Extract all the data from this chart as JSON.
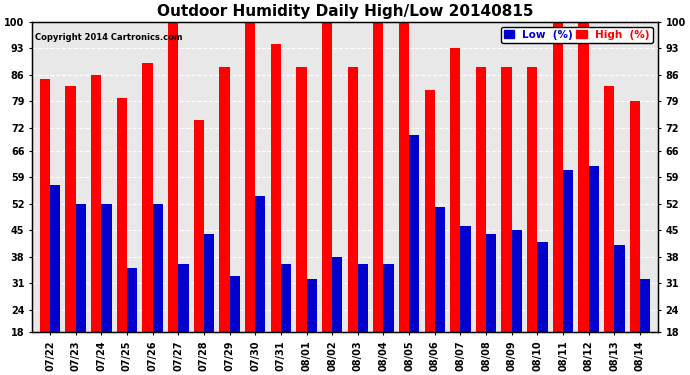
{
  "title": "Outdoor Humidity Daily High/Low 20140815",
  "copyright": "Copyright 2014 Cartronics.com",
  "legend_low": "Low  (%)",
  "legend_high": "High  (%)",
  "categories": [
    "07/22",
    "07/23",
    "07/24",
    "07/25",
    "07/26",
    "07/27",
    "07/28",
    "07/29",
    "07/30",
    "07/31",
    "08/01",
    "08/02",
    "08/03",
    "08/04",
    "08/05",
    "08/06",
    "08/07",
    "08/08",
    "08/09",
    "08/10",
    "08/11",
    "08/12",
    "08/13",
    "08/14"
  ],
  "high_values": [
    85,
    83,
    86,
    80,
    89,
    100,
    74,
    88,
    100,
    94,
    88,
    100,
    88,
    100,
    100,
    82,
    93,
    88,
    88,
    88,
    100,
    100,
    83,
    79
  ],
  "low_values": [
    57,
    52,
    52,
    35,
    52,
    36,
    44,
    33,
    54,
    36,
    32,
    38,
    36,
    36,
    70,
    51,
    46,
    44,
    45,
    42,
    61,
    62,
    41,
    32
  ],
  "high_color": "#ff0000",
  "low_color": "#0000cc",
  "bg_color": "#ffffff",
  "plot_bg_color": "#e8e8e8",
  "grid_color": "#ffffff",
  "ylim_min": 18,
  "ylim_max": 100,
  "yticks": [
    18,
    24,
    31,
    38,
    45,
    52,
    59,
    66,
    72,
    79,
    86,
    93,
    100
  ],
  "bar_width": 0.4,
  "title_fontsize": 11,
  "tick_fontsize": 7,
  "legend_fontsize": 7.5
}
